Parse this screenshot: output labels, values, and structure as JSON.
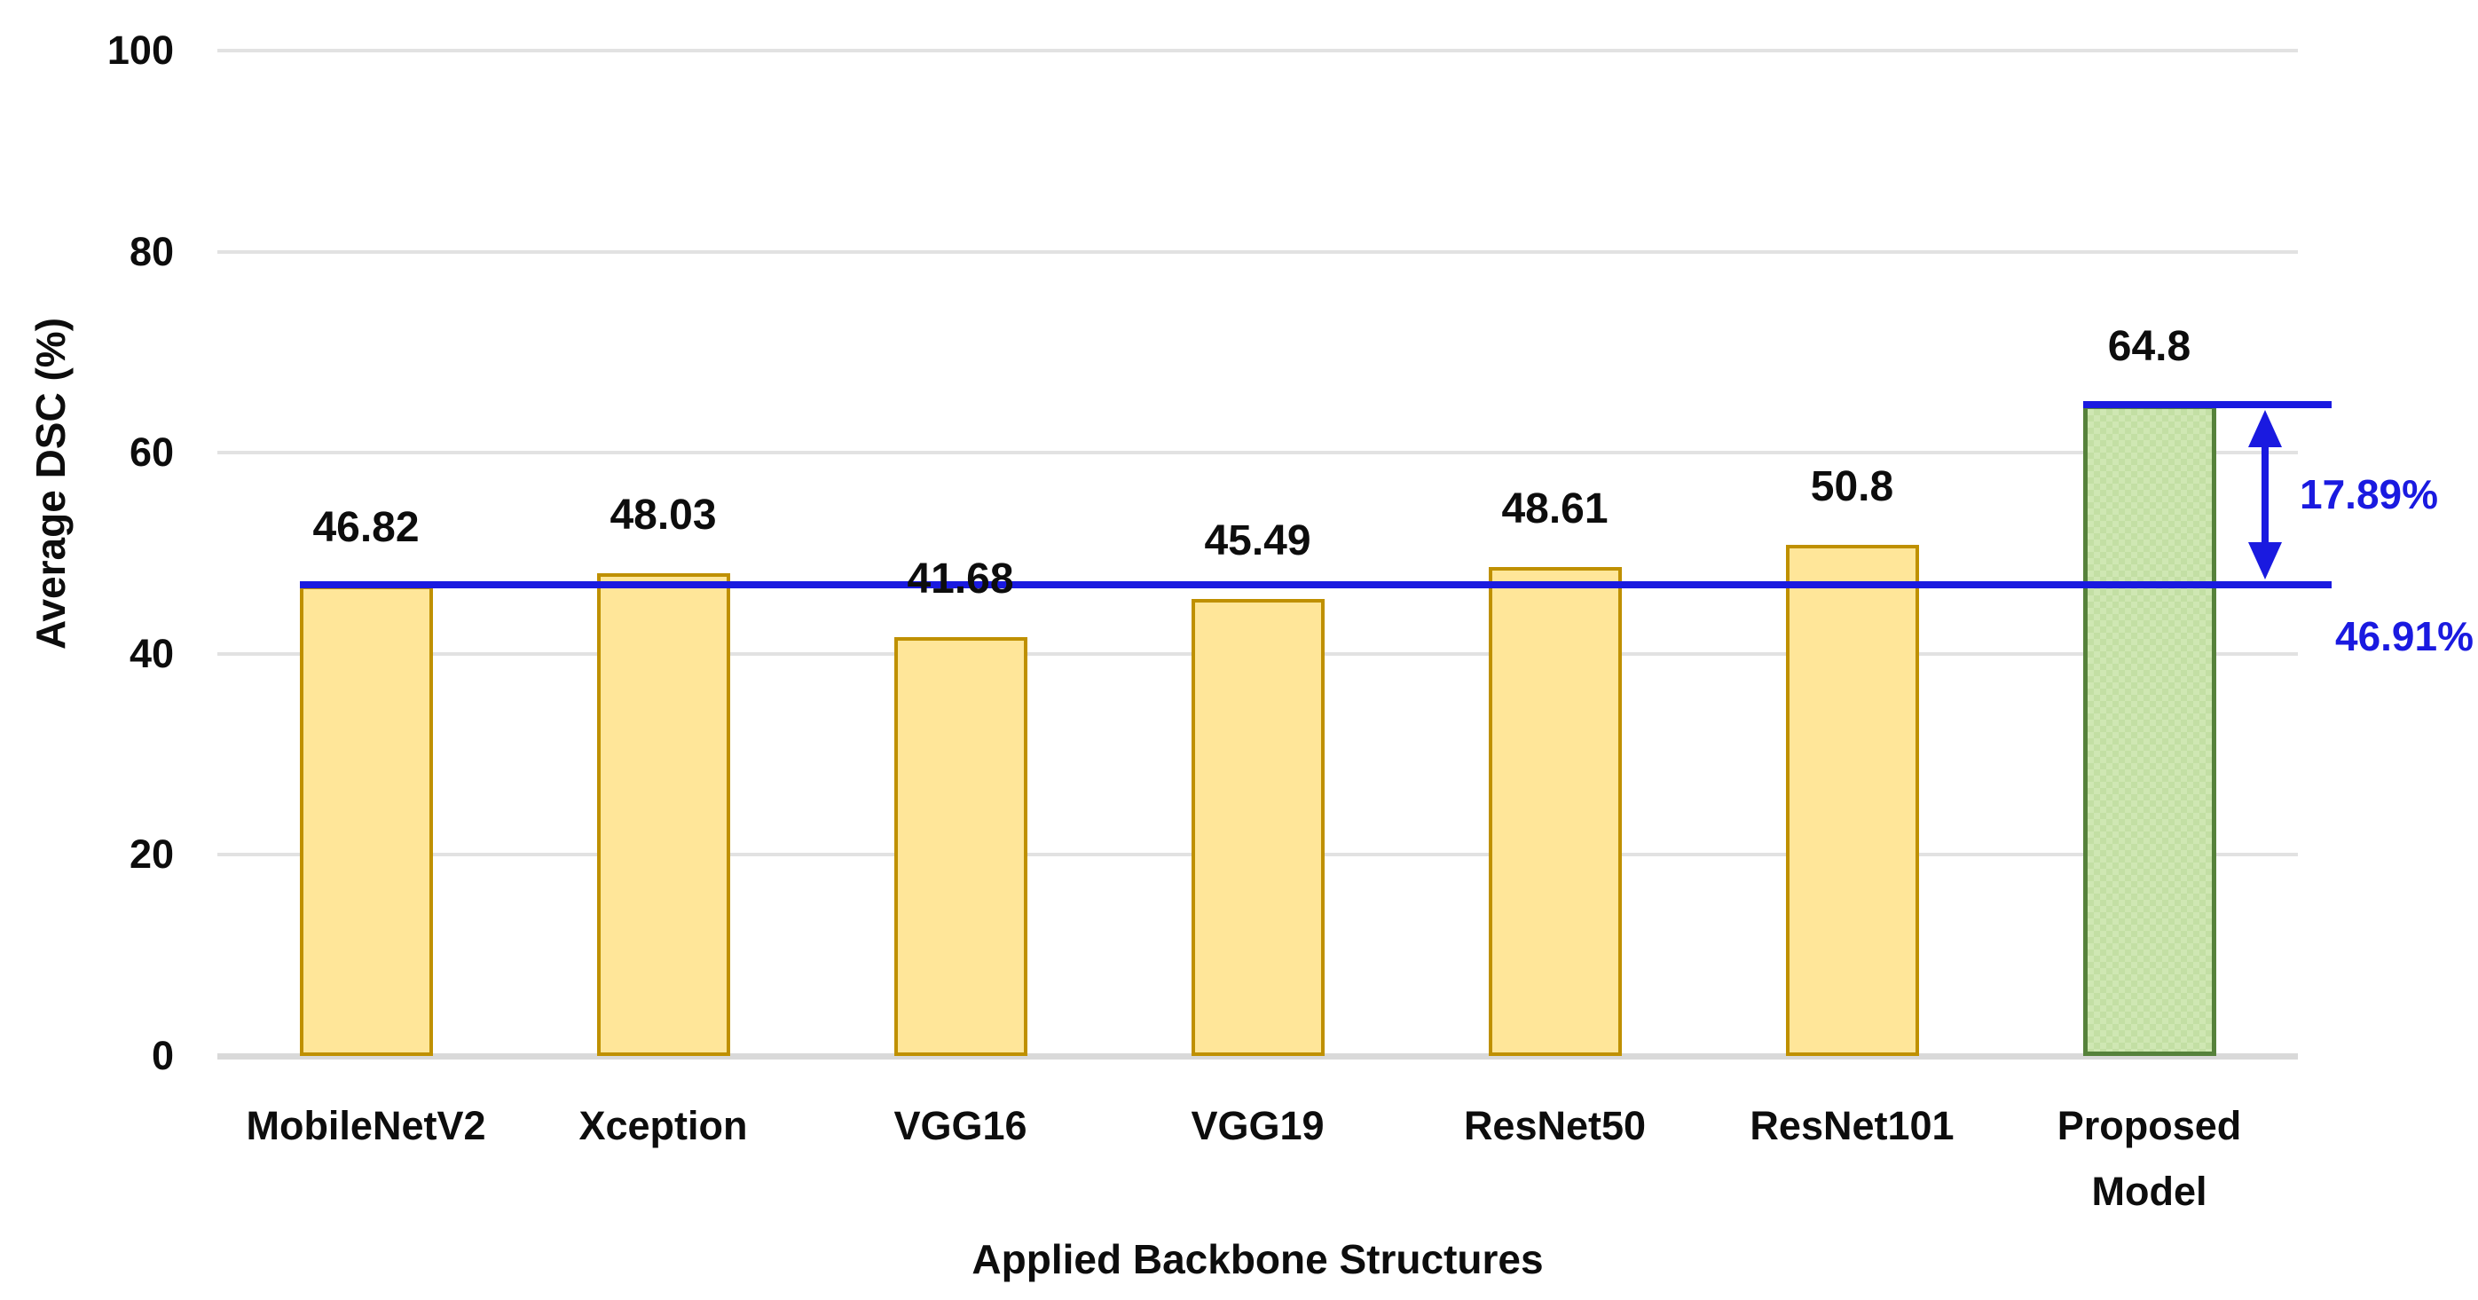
{
  "chart_data": {
    "type": "bar",
    "title": "",
    "xlabel": "Applied Backbone Structures",
    "ylabel": "Average DSC (%)",
    "ylim": [
      0,
      100
    ],
    "yticks": [
      0,
      20,
      40,
      60,
      80,
      100
    ],
    "grid": true,
    "legend": false,
    "categories": [
      "MobileNetV2",
      "Xception",
      "VGG16",
      "VGG19",
      "ResNet50",
      "ResNet101",
      "Proposed\nModel"
    ],
    "values": [
      46.82,
      48.03,
      41.68,
      45.49,
      48.61,
      50.8,
      64.8
    ],
    "bar_value_labels": [
      "46.82",
      "48.03",
      "41.68",
      "45.49",
      "48.61",
      "50.8",
      "64.8"
    ],
    "highlight_index": 6,
    "reference_line": {
      "value": 46.91,
      "label": "46.91%"
    },
    "difference_arrow": {
      "from": 46.91,
      "to": 64.8,
      "label": "17.89%"
    },
    "colors": {
      "bar_fill": "#ffe699",
      "bar_border": "#bf9000",
      "highlight_fill": "#cfe7b3",
      "highlight_fill_alt": "#c3dfa4",
      "highlight_border": "#56823b",
      "annotation_blue": "#1a1ae0",
      "gridline": "#e2e2e2",
      "axis_line": "#d9d9d9",
      "text": "#0d0d0d"
    }
  }
}
